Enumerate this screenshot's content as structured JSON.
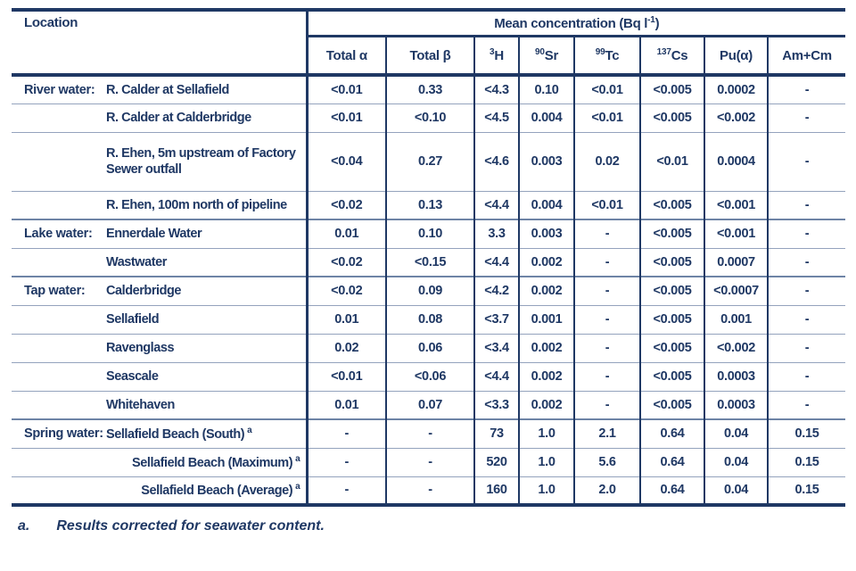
{
  "table": {
    "location_header": "Location",
    "mean_header": {
      "pre": "Mean concentration (Bq l",
      "sup": "-1",
      "post": ")"
    },
    "columns": [
      {
        "sup": "",
        "base": "Total α"
      },
      {
        "sup": "",
        "base": "Total β"
      },
      {
        "sup": "3",
        "base": "H"
      },
      {
        "sup": "90",
        "base": "Sr"
      },
      {
        "sup": "99",
        "base": "Tc"
      },
      {
        "sup": "137",
        "base": "Cs"
      },
      {
        "sup": "",
        "base": "Pu(α)"
      },
      {
        "sup": "",
        "base": "Am+Cm"
      }
    ],
    "rows": [
      {
        "category": "River water:",
        "name": "R. Calder at Sellafield",
        "marker": "",
        "values": [
          "<0.01",
          "0.33",
          "<4.3",
          "0.10",
          "<0.01",
          "<0.005",
          "0.0002",
          "-"
        ]
      },
      {
        "category": "",
        "name": "R. Calder at Calderbridge",
        "marker": "",
        "values": [
          "<0.01",
          "<0.10",
          "<4.5",
          "0.004",
          "<0.01",
          "<0.005",
          "<0.002",
          "-"
        ]
      },
      {
        "category": "",
        "name": "R. Ehen, 5m upstream of Factory\nSewer outfall",
        "marker": "",
        "tall": true,
        "values": [
          "<0.04",
          "0.27",
          "<4.6",
          "0.003",
          "0.02",
          "<0.01",
          "0.0004",
          "-"
        ]
      },
      {
        "category": "",
        "name": "R. Ehen, 100m north of pipeline",
        "marker": "",
        "values": [
          "<0.02",
          "0.13",
          "<4.4",
          "0.004",
          "<0.01",
          "<0.005",
          "<0.001",
          "-"
        ]
      },
      {
        "category": "Lake water:",
        "name": "Ennerdale Water",
        "marker": "",
        "values": [
          "0.01",
          "0.10",
          "3.3",
          "0.003",
          "-",
          "<0.005",
          "<0.001",
          "-"
        ]
      },
      {
        "category": "",
        "name": "Wastwater",
        "marker": "",
        "values": [
          "<0.02",
          "<0.15",
          "<4.4",
          "0.002",
          "-",
          "<0.005",
          "0.0007",
          "-"
        ]
      },
      {
        "category": "Tap water:",
        "name": "Calderbridge",
        "marker": "",
        "values": [
          "<0.02",
          "0.09",
          "<4.2",
          "0.002",
          "-",
          "<0.005",
          "<0.0007",
          "-"
        ]
      },
      {
        "category": "",
        "name": "Sellafield",
        "marker": "",
        "values": [
          "0.01",
          "0.08",
          "<3.7",
          "0.001",
          "-",
          "<0.005",
          "0.001",
          "-"
        ]
      },
      {
        "category": "",
        "name": "Ravenglass",
        "marker": "",
        "values": [
          "0.02",
          "0.06",
          "<3.4",
          "0.002",
          "-",
          "<0.005",
          "<0.002",
          "-"
        ]
      },
      {
        "category": "",
        "name": "Seascale",
        "marker": "",
        "values": [
          "<0.01",
          "<0.06",
          "<4.4",
          "0.002",
          "-",
          "<0.005",
          "0.0003",
          "-"
        ]
      },
      {
        "category": "",
        "name": "Whitehaven",
        "marker": "",
        "values": [
          "0.01",
          "0.07",
          "<3.3",
          "0.002",
          "-",
          "<0.005",
          "0.0003",
          "-"
        ]
      },
      {
        "category": "Spring water:",
        "name": "Sellafield Beach (South)",
        "marker": "a",
        "values": [
          "-",
          "-",
          "73",
          "1.0",
          "2.1",
          "0.64",
          "0.04",
          "0.15"
        ]
      },
      {
        "category": "",
        "name": "Sellafield Beach (Maximum)",
        "marker": "a",
        "name_align": "right",
        "values": [
          "-",
          "-",
          "520",
          "1.0",
          "5.6",
          "0.64",
          "0.04",
          "0.15"
        ]
      },
      {
        "category": "",
        "name": "Sellafield Beach (Average)",
        "marker": "a",
        "name_align": "right",
        "values": [
          "-",
          "-",
          "160",
          "1.0",
          "2.0",
          "0.64",
          "0.04",
          "0.15"
        ]
      }
    ]
  },
  "footnote": {
    "marker": "a.",
    "text": "Results corrected for seawater content."
  },
  "colors": {
    "border_dark": "#1f3864",
    "border_light": "#94a3bd",
    "text": "#1f3864",
    "background": "#ffffff"
  }
}
